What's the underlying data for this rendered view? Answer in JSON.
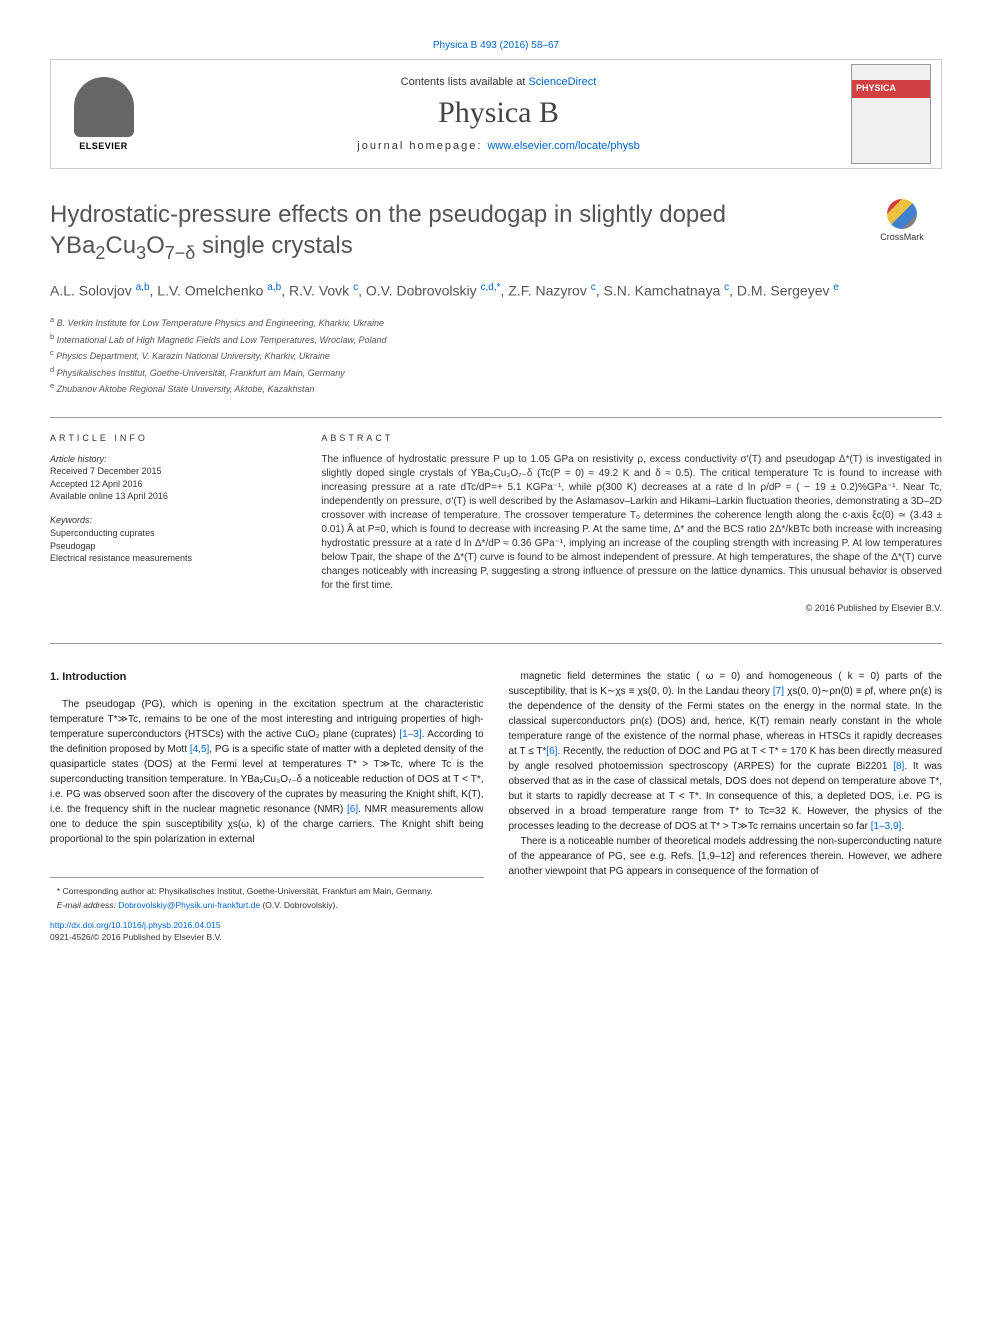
{
  "header": {
    "top_link": "Physica B 493 (2016) 58–67",
    "contents_text": "Contents lists available at ",
    "sciencedirect": "ScienceDirect",
    "journal_name": "Physica B",
    "homepage_label": "journal homepage: ",
    "homepage_url": "www.elsevier.com/locate/physb",
    "elsevier_label": "ELSEVIER",
    "cover_label": "PHYSICA"
  },
  "crossmark_label": "CrossMark",
  "title_line1": "Hydrostatic-pressure effects on the pseudogap in slightly doped",
  "title_line2_prefix": "YBa",
  "title_line2_sub1": "2",
  "title_line2_mid1": "Cu",
  "title_line2_sub2": "3",
  "title_line2_mid2": "O",
  "title_line2_sub3": "7−δ",
  "title_line2_suffix": " single crystals",
  "authors_html": "A.L. Solovjov <sup>a,b</sup>, L.V. Omelchenko <sup>a,b</sup>, R.V. Vovk <sup>c</sup>, O.V. Dobrovolskiy <sup>c,d,*</sup>, Z.F. Nazyrov <sup>c</sup>, S.N. Kamchatnaya <sup>c</sup>, D.M. Sergeyev <sup>e</sup>",
  "affiliations": [
    "a B. Verkin Institute for Low Temperature Physics and Engineering, Kharkiv, Ukraine",
    "b International Lab of High Magnetic Fields and Low Temperatures, Wroclaw, Poland",
    "c Physics Department, V. Karazin National University, Kharkiv, Ukraine",
    "d Physikalisches Institut, Goethe-Universität, Frankfurt am Main, Germany",
    "e Zhubanov Aktobe Regional State University, Aktobe, Kazakhstan"
  ],
  "meta": {
    "article_info_heading": "ARTICLE INFO",
    "history_title": "Article history:",
    "history_received": "Received 7 December 2015",
    "history_accepted": "Accepted 12 April 2016",
    "history_online": "Available online 13 April 2016",
    "keywords_title": "Keywords:",
    "keywords": [
      "Superconducting cuprates",
      "Pseudogap",
      "Electrical resistance measurements"
    ]
  },
  "abstract": {
    "heading": "ABSTRACT",
    "text": "The influence of hydrostatic pressure P up to 1.05 GPa on resistivity ρ, excess conductivity σ′(T) and pseudogap Δ*(T) is investigated in slightly doped single crystals of YBa₂Cu₃O₇₋δ (Tc(P = 0) ≈ 49.2 K and δ ≈ 0.5). The critical temperature Tc is found to increase with increasing pressure at a rate dTc/dP=+ 5.1 KGPa⁻¹, while ρ(300 K) decreases at a rate d ln ρ/dP = ( − 19 ± 0.2)%GPa⁻¹. Near Tc, independently on pressure, σ′(T) is well described by the Aslamasov–Larkin and Hikami–Larkin fluctuation theories, demonstrating a 3D–2D crossover with increase of temperature. The crossover temperature T₀ determines the coherence length along the c-axis ξc(0) ≃ (3.43 ± 0.01) Å at P=0, which is found to decrease with increasing P. At the same time, Δ* and the BCS ratio 2Δ*/kBTc both increase with increasing hydrostatic pressure at a rate d ln Δ*/dP ≈ 0.36 GPa⁻¹, implying an increase of the coupling strength with increasing P. At low temperatures below Tpair, the shape of the Δ*(T) curve is found to be almost independent of pressure. At high temperatures, the shape of the Δ*(T) curve changes noticeably with increasing P, suggesting a strong influence of pressure on the lattice dynamics. This unusual behavior is observed for the first time.",
    "copyright": "© 2016 Published by Elsevier B.V."
  },
  "body": {
    "intro_heading": "1. Introduction",
    "col1": "The pseudogap (PG), which is opening in the excitation spectrum at the characteristic temperature T*≫Tc, remains to be one of the most interesting and intriguing properties of high-temperature superconductors (HTSCs) with the active CuO₂ plane (cuprates) [1–3]. According to the definition proposed by Mott [4,5], PG is a specific state of matter with a depleted density of the quasiparticle states (DOS) at the Fermi level at temperatures T* > T≫Tc, where Tc is the superconducting transition temperature. In YBa₂Cu₃O₇₋δ a noticeable reduction of DOS at T < T*, i.e. PG was observed soon after the discovery of the cuprates by measuring the Knight shift, K(T), i.e. the frequency shift in the nuclear magnetic resonance (NMR) [6]. NMR measurements allow one to deduce the spin susceptibility χs(ω, k) of the charge carriers. The Knight shift being proportional to the spin polarization in external",
    "col2_p1": "magnetic field determines the static ( ω = 0) and homogeneous ( k = 0) parts of the susceptibility, that is K∼χs ≡ χs(0, 0). In the Landau theory [7] χs(0, 0)∼ρn(0) ≡ ρf, where ρn(ε) is the dependence of the density of the Fermi states on the energy in the normal state. In the classical superconductors ρn(ε) (DOS) and, hence, K(T) remain nearly constant in the whole temperature range of the existence of the normal phase, whereas in HTSCs it rapidly decreases at T ≤ T*[6]. Recently, the reduction of DOC and PG at T < T* = 170 K has been directly measured by angle resolved photoemission spectroscopy (ARPES) for the cuprate Bi2201 [8]. It was observed that as in the case of classical metals, DOS does not depend on temperature above T*, but it starts to rapidly decrease at T < T*. In consequence of this, a depleted DOS, i.e. PG is observed in a broad temperature range from T* to Tc=32 K. However, the physics of the processes leading to the decrease of DOS at T* > T≫Tc remains uncertain so far [1–3,9].",
    "col2_p2": "There is a noticeable number of theoretical models addressing the non-superconducting nature of the appearance of PG, see e.g. Refs. [1,9–12] and references therein. However, we adhere another viewpoint that PG appears in consequence of the formation of"
  },
  "footer": {
    "corresp": "* Corresponding author at: Physikalisches Institut, Goethe-Universität, Frankfurt am Main, Germany.",
    "email_label": "E-mail address: ",
    "email_addr": "Dobrovolskiy@Physik.uni-frankfurt.de",
    "email_name": " (O.V. Dobrovolskiy).",
    "doi": "http://dx.doi.org/10.1016/j.physb.2016.04.015",
    "issn": "0921-4526/© 2016 Published by Elsevier B.V."
  },
  "colors": {
    "link": "#0066cc",
    "text": "#333333",
    "title": "#555555",
    "border": "#999999"
  }
}
